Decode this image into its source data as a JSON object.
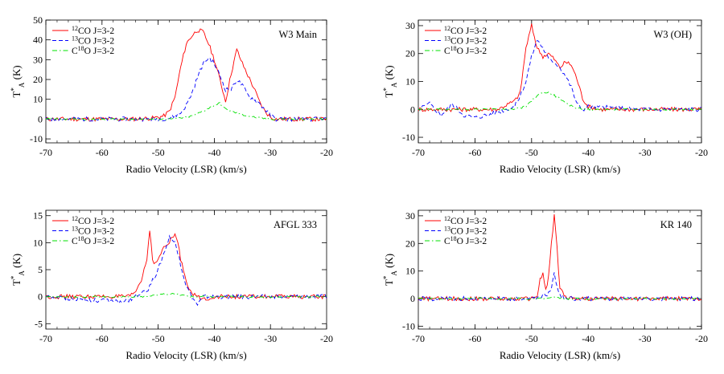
{
  "chart_data": [
    {
      "type": "line",
      "title": "W3 Main",
      "xlabel": "Radio Velocity (LSR) (km/s)",
      "ylabel": "T*A (K)",
      "xlim": [
        -70,
        -20
      ],
      "ylim": [
        -12,
        50
      ],
      "xticks": [
        -70,
        -60,
        -50,
        -40,
        -30,
        -20
      ],
      "yticks": [
        -10,
        0,
        10,
        20,
        30,
        40,
        50
      ],
      "legend": "top-left",
      "grid": false,
      "series": [
        {
          "name": "12CO J=3-2",
          "color": "#ff0000",
          "dash": "solid",
          "x": [
            -70,
            -55,
            -51,
            -49,
            -48,
            -47,
            -46,
            -45,
            -44,
            -43,
            -42,
            -41,
            -40,
            -39,
            -38,
            -37,
            -36,
            -35,
            -34,
            -33,
            -32,
            -31,
            -30,
            -29,
            -28,
            -20
          ],
          "y": [
            0,
            0,
            0.5,
            1.5,
            4,
            11,
            26,
            38,
            42,
            45,
            44,
            38,
            30,
            20,
            9,
            23,
            35,
            28,
            22,
            16,
            9,
            4,
            1,
            0,
            0,
            0
          ]
        },
        {
          "name": "13CO J=3-2",
          "color": "#0000ff",
          "dash": "dashed",
          "x": [
            -70,
            -50,
            -48,
            -46,
            -45,
            -44,
            -43,
            -42,
            -41,
            -40,
            -39,
            -38,
            -37,
            -36,
            -35,
            -34,
            -33,
            -32,
            -31,
            -30,
            -29,
            -28,
            -20
          ],
          "y": [
            0,
            0,
            0.5,
            3,
            7,
            13,
            21,
            28,
            31,
            28,
            22,
            15,
            15,
            20,
            17,
            12,
            10,
            8,
            5,
            2,
            0,
            0,
            0
          ]
        },
        {
          "name": "C18O J=3-2",
          "color": "#00e000",
          "dash": "dashdot",
          "x": [
            -70,
            -48,
            -46,
            -44,
            -42,
            -40,
            -39,
            -38,
            -37,
            -36,
            -34,
            -32,
            -30,
            -28,
            -20
          ],
          "y": [
            0,
            0,
            0.5,
            1.5,
            4,
            7,
            8,
            5,
            4,
            3,
            1.5,
            0.5,
            0,
            0,
            0
          ]
        }
      ]
    },
    {
      "type": "line",
      "title": "W3 (OH)",
      "xlabel": "Radio Velocity (LSR) (km/s)",
      "ylabel": "T*A (K)",
      "xlim": [
        -70,
        -20
      ],
      "ylim": [
        -12,
        32
      ],
      "xticks": [
        -70,
        -60,
        -50,
        -40,
        -30,
        -20
      ],
      "yticks": [
        -10,
        0,
        10,
        20,
        30
      ],
      "legend": "top-left",
      "grid": false,
      "series": [
        {
          "name": "12CO J=3-2",
          "color": "#ff0000",
          "dash": "solid",
          "x": [
            -70,
            -56,
            -54,
            -53,
            -52,
            -51,
            -50,
            -49,
            -48,
            -47,
            -46,
            -45,
            -44,
            -43,
            -42,
            -41,
            -40,
            -38,
            -20
          ],
          "y": [
            0,
            0,
            2,
            3,
            6,
            22,
            30,
            22,
            19,
            20,
            18,
            15,
            17,
            16,
            11,
            4,
            1,
            0,
            0
          ]
        },
        {
          "name": "13CO J=3-2",
          "color": "#0000ff",
          "dash": "dashed",
          "x": [
            -70,
            -68,
            -66,
            -64,
            -62,
            -60,
            -56,
            -53,
            -52,
            -51,
            -50,
            -49,
            -48,
            -47,
            -46,
            -45,
            -44,
            -43,
            -42,
            -41,
            -40,
            -30,
            -20
          ],
          "y": [
            0,
            2,
            -2,
            2,
            -2,
            -3,
            -1,
            1,
            5,
            10,
            19,
            25,
            22,
            18,
            17,
            15,
            12,
            8,
            2,
            0,
            1,
            0,
            0
          ]
        },
        {
          "name": "C18O J=3-2",
          "color": "#00e000",
          "dash": "dashdot",
          "x": [
            -70,
            -53,
            -51,
            -50,
            -49,
            -48,
            -47,
            -46,
            -45,
            -44,
            -42,
            -40,
            -20
          ],
          "y": [
            0,
            0,
            1,
            3,
            5,
            6,
            6,
            5,
            4,
            2,
            0.5,
            0,
            0
          ]
        }
      ]
    },
    {
      "type": "line",
      "title": "AFGL 333",
      "xlabel": "Radio Velocity (LSR) (km/s)",
      "ylabel": "T*A (K)",
      "xlim": [
        -70,
        -20
      ],
      "ylim": [
        -6,
        16
      ],
      "xticks": [
        -70,
        -60,
        -50,
        -40,
        -30,
        -20
      ],
      "yticks": [
        -5,
        0,
        5,
        10,
        15
      ],
      "legend": "top-left",
      "grid": false,
      "series": [
        {
          "name": "12CO J=3-2",
          "color": "#ff0000",
          "dash": "solid",
          "x": [
            -70,
            -55,
            -54,
            -53,
            -52,
            -51.5,
            -51,
            -50.5,
            -50,
            -49,
            -48,
            -47.5,
            -47,
            -46.5,
            -46,
            -45,
            -44,
            -43,
            -42,
            -40,
            -20
          ],
          "y": [
            0,
            0,
            1,
            3,
            7,
            12.5,
            7,
            6,
            7,
            9,
            10,
            11,
            11.5,
            10,
            7,
            3,
            0.5,
            0,
            -0.5,
            0,
            0
          ]
        },
        {
          "name": "13CO J=3-2",
          "color": "#0000ff",
          "dash": "dashed",
          "x": [
            -70,
            -56,
            -54,
            -52,
            -51,
            -50,
            -49,
            -48,
            -47.5,
            -47,
            -46,
            -45,
            -44,
            -43,
            -42,
            -20
          ],
          "y": [
            0,
            -1,
            0,
            1,
            3,
            5,
            8,
            11,
            10.5,
            10,
            6,
            2,
            0,
            -1.5,
            0,
            0
          ]
        },
        {
          "name": "C18O J=3-2",
          "color": "#00e000",
          "dash": "dashdot",
          "x": [
            -70,
            -52,
            -50,
            -48,
            -46,
            -44,
            -20
          ],
          "y": [
            0,
            0,
            0.3,
            0.5,
            0.3,
            0,
            0
          ]
        }
      ]
    },
    {
      "type": "line",
      "title": "KR 140",
      "xlabel": "Radio Velocity (LSR) (km/s)",
      "ylabel": "T*A (K)",
      "xlim": [
        -70,
        -20
      ],
      "ylim": [
        -11,
        32
      ],
      "xticks": [
        -70,
        -60,
        -50,
        -40,
        -30,
        -20
      ],
      "yticks": [
        -10,
        0,
        10,
        20,
        30
      ],
      "legend": "top-left",
      "grid": false,
      "series": [
        {
          "name": "12CO J=3-2",
          "color": "#ff0000",
          "dash": "solid",
          "x": [
            -70,
            -50,
            -49,
            -48.5,
            -48,
            -47.5,
            -47,
            -46.5,
            -46,
            -45.5,
            -45,
            -44,
            -42,
            -20
          ],
          "y": [
            0,
            0,
            1,
            7,
            9,
            3,
            8,
            20,
            30,
            18,
            4,
            0.5,
            0,
            0
          ]
        },
        {
          "name": "13CO J=3-2",
          "color": "#0000ff",
          "dash": "dashed",
          "x": [
            -70,
            -49,
            -48,
            -47,
            -46.5,
            -46,
            -45.5,
            -45,
            -44,
            -20
          ],
          "y": [
            0,
            0,
            1,
            2,
            4,
            9,
            5,
            1,
            0,
            0
          ]
        },
        {
          "name": "C18O J=3-2",
          "color": "#00e000",
          "dash": "dashdot",
          "x": [
            -70,
            -48,
            -46,
            -44,
            -20
          ],
          "y": [
            0,
            0,
            0.5,
            0,
            0
          ]
        }
      ]
    }
  ]
}
